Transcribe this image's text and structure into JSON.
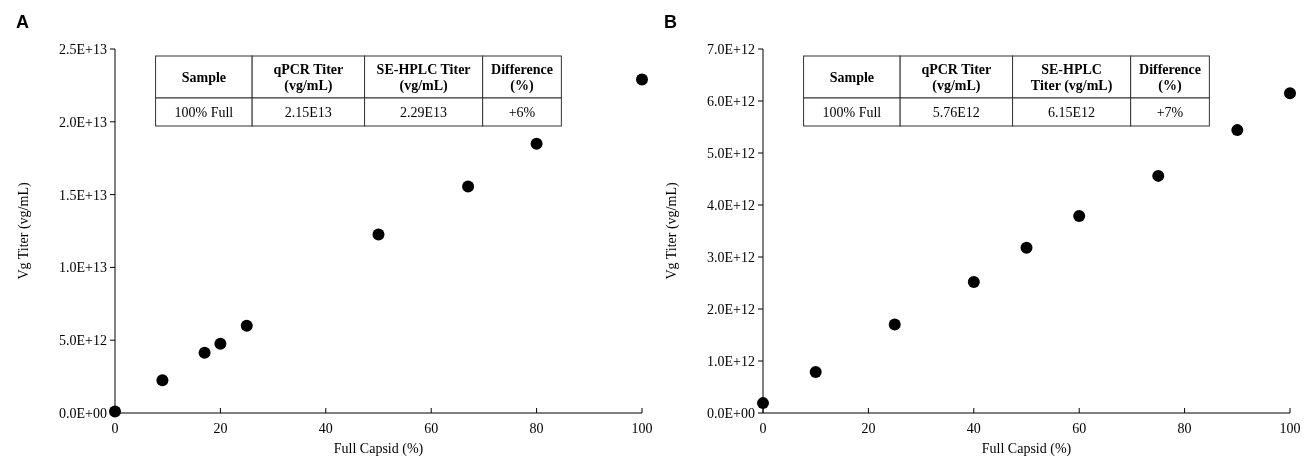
{
  "chart_data": [
    {
      "type": "scatter",
      "title": "A",
      "xlabel": "Full Capsid (%)",
      "ylabel": "Vg Titer (vg/mL)",
      "color": "#000000",
      "marker": "circle",
      "x": [
        0,
        9,
        17,
        20,
        25,
        50,
        67,
        80,
        100
      ],
      "values": [
        100000000000.0,
        2250000000000.0,
        4140000000000.0,
        4760000000000.0,
        6000000000000.0,
        12260000000000.0,
        15560000000000.0,
        18490000000000.0,
        22900000000000.0
      ],
      "xlim": [
        0,
        100
      ],
      "xticks": [
        0,
        20,
        40,
        60,
        80,
        100
      ],
      "ylim": [
        0,
        25000000000000.0
      ],
      "yticks": [
        {
          "value": 0,
          "label": "0.0E+00"
        },
        {
          "value": 5000000000000.0,
          "label": "5.0E+12"
        },
        {
          "value": 10000000000000.0,
          "label": "1.0E+13"
        },
        {
          "value": 15000000000000.0,
          "label": "1.5E+13"
        },
        {
          "value": 20000000000000.0,
          "label": "2.0E+13"
        },
        {
          "value": 25000000000000.0,
          "label": "2.5E+13"
        }
      ],
      "annotations": [
        "Sample",
        "qPCR Titer\n(vg/mL)",
        "SE-HPLC Titer\n(vg/mL)",
        "Difference\n(%)",
        "100% Full",
        "2.15E13",
        "2.29E13",
        "+6%"
      ]
    },
    {
      "type": "scatter",
      "title": "B",
      "xlabel": "Full Capsid (%)",
      "ylabel": "Vg Titer (vg/mL)",
      "color": "#000000",
      "marker": "circle",
      "x": [
        0,
        10,
        25,
        40,
        50,
        60,
        75,
        90,
        100
      ],
      "values": [
        190000000000.0,
        790000000000.0,
        1700000000000.0,
        2520000000000.0,
        3180000000000.0,
        3790000000000.0,
        4560000000000.0,
        5440000000000.0,
        6150000000000.0
      ],
      "xlim": [
        0,
        100
      ],
      "xticks": [
        0,
        20,
        40,
        60,
        80,
        100
      ],
      "ylim": [
        0,
        7000000000000.0
      ],
      "yticks": [
        {
          "value": 0,
          "label": "0.0E+00"
        },
        {
          "value": 1000000000000.0,
          "label": "1.0E+12"
        },
        {
          "value": 2000000000000.0,
          "label": "2.0E+12"
        },
        {
          "value": 3000000000000.0,
          "label": "3.0E+12"
        },
        {
          "value": 4000000000000.0,
          "label": "4.0E+12"
        },
        {
          "value": 5000000000000.0,
          "label": "5.0E+12"
        },
        {
          "value": 6000000000000.0,
          "label": "6.0E+12"
        },
        {
          "value": 7000000000000.0,
          "label": "7.0E+12"
        }
      ],
      "annotations": [
        "Sample",
        "qPCR Titer\n(vg/mL)",
        "SE-HPLC\nTiter (vg/mL)",
        "Difference\n(%)",
        "100% Full",
        "5.76E12",
        "6.15E12",
        "+7%"
      ]
    }
  ]
}
